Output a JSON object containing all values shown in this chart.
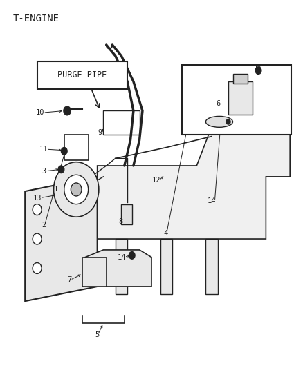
{
  "title": "T-ENGINE",
  "background_color": "#ffffff",
  "purge_pipe_label": "PURGE PIPE",
  "line_color": "#222222",
  "fig_width": 4.38,
  "fig_height": 5.33,
  "dpi": 100
}
